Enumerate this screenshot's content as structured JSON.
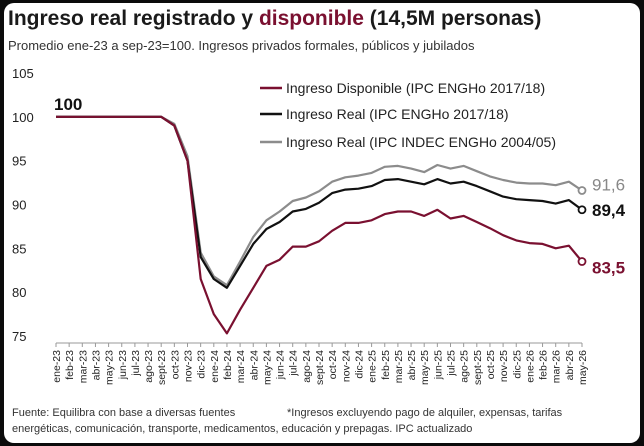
{
  "header": {
    "title_part1": "Ingreso real registrado y ",
    "title_accent": "disponible",
    "title_part2": " (14,5M personas)",
    "subtitle": "Promedio ene-23 a sep-23=100. Ingresos privados formales, públicos y jubilados"
  },
  "footer": {
    "source": "Fuente: Equilibra con base a diversas fuentes",
    "note_line1": "*Ingresos excluyendo pago de alquiler, expensas, tarifas",
    "note_line2": "energéticas, comunicación, transporte, medicamentos, educación y prepagas. IPC actualizado"
  },
  "chart_data": {
    "type": "line",
    "categories": [
      "ene-23",
      "feb-23",
      "mar-23",
      "abr-23",
      "may-23",
      "jun-23",
      "jul-23",
      "ago-23",
      "sept-23",
      "oct-23",
      "nov-23",
      "dic-23",
      "ene-24",
      "feb-24",
      "mar-24",
      "abr-24",
      "may-24",
      "jun-24",
      "jul-24",
      "ago-24",
      "sept-24",
      "oct-24",
      "nov-24",
      "dic-24",
      "ene-25",
      "feb-25",
      "mar-25",
      "abr-25",
      "may-25",
      "jun-25",
      "jul-25",
      "ago-25",
      "sept-25",
      "oct-25",
      "nov-25",
      "dic-25",
      "ene-26",
      "feb-26",
      "mar-26",
      "abr-26",
      "may-26"
    ],
    "ylim": [
      75,
      105
    ],
    "yticks": [
      75,
      80,
      85,
      90,
      95,
      100,
      105
    ],
    "grid": false,
    "legend_position": "top-right",
    "start_label": "100",
    "series": [
      {
        "name": "Ingreso Disponible (IPC ENGHo 2017/18)",
        "color": "#7a1030",
        "end_label": "83,5",
        "values": [
          100,
          100,
          100,
          100,
          100,
          100,
          100,
          100,
          100,
          99,
          95,
          81.5,
          77.5,
          75.3,
          78,
          80.5,
          83,
          83.7,
          85.2,
          85.2,
          85.8,
          87,
          87.9,
          87.9,
          88.2,
          88.9,
          89.2,
          89.2,
          88.7,
          89.4,
          88.4,
          88.7,
          88,
          87.3,
          86.5,
          85.9,
          85.6,
          85.5,
          85,
          85.3,
          83.5
        ]
      },
      {
        "name": "Ingreso Real  (IPC ENGHo 2017/18)",
        "color": "#111111",
        "end_label": "89,4",
        "values": [
          100,
          100,
          100,
          100,
          100,
          100,
          100,
          100,
          100,
          99,
          95,
          84,
          81.5,
          80.5,
          83,
          85.5,
          87.2,
          88,
          89.2,
          89.5,
          90.2,
          91.3,
          91.7,
          91.8,
          92.1,
          92.8,
          92.9,
          92.6,
          92.3,
          92.9,
          92.4,
          92.6,
          92.1,
          91.5,
          90.9,
          90.6,
          90.5,
          90.4,
          90.1,
          90.5,
          89.4
        ]
      },
      {
        "name": "Ingreso Real  (IPC INDEC ENGHo 2004/05)",
        "color": "#8c8c8c",
        "end_label": "91,6",
        "values": [
          100,
          100,
          100,
          100,
          100,
          100,
          100,
          100,
          100,
          99.2,
          95.5,
          84.5,
          81.8,
          80.8,
          83.5,
          86.3,
          88.2,
          89.2,
          90.4,
          90.8,
          91.5,
          92.6,
          93.1,
          93.3,
          93.6,
          94.3,
          94.4,
          94.1,
          93.7,
          94.5,
          94.1,
          94.4,
          93.8,
          93.2,
          92.8,
          92.5,
          92.4,
          92.4,
          92.2,
          92.6,
          91.6
        ]
      }
    ]
  }
}
